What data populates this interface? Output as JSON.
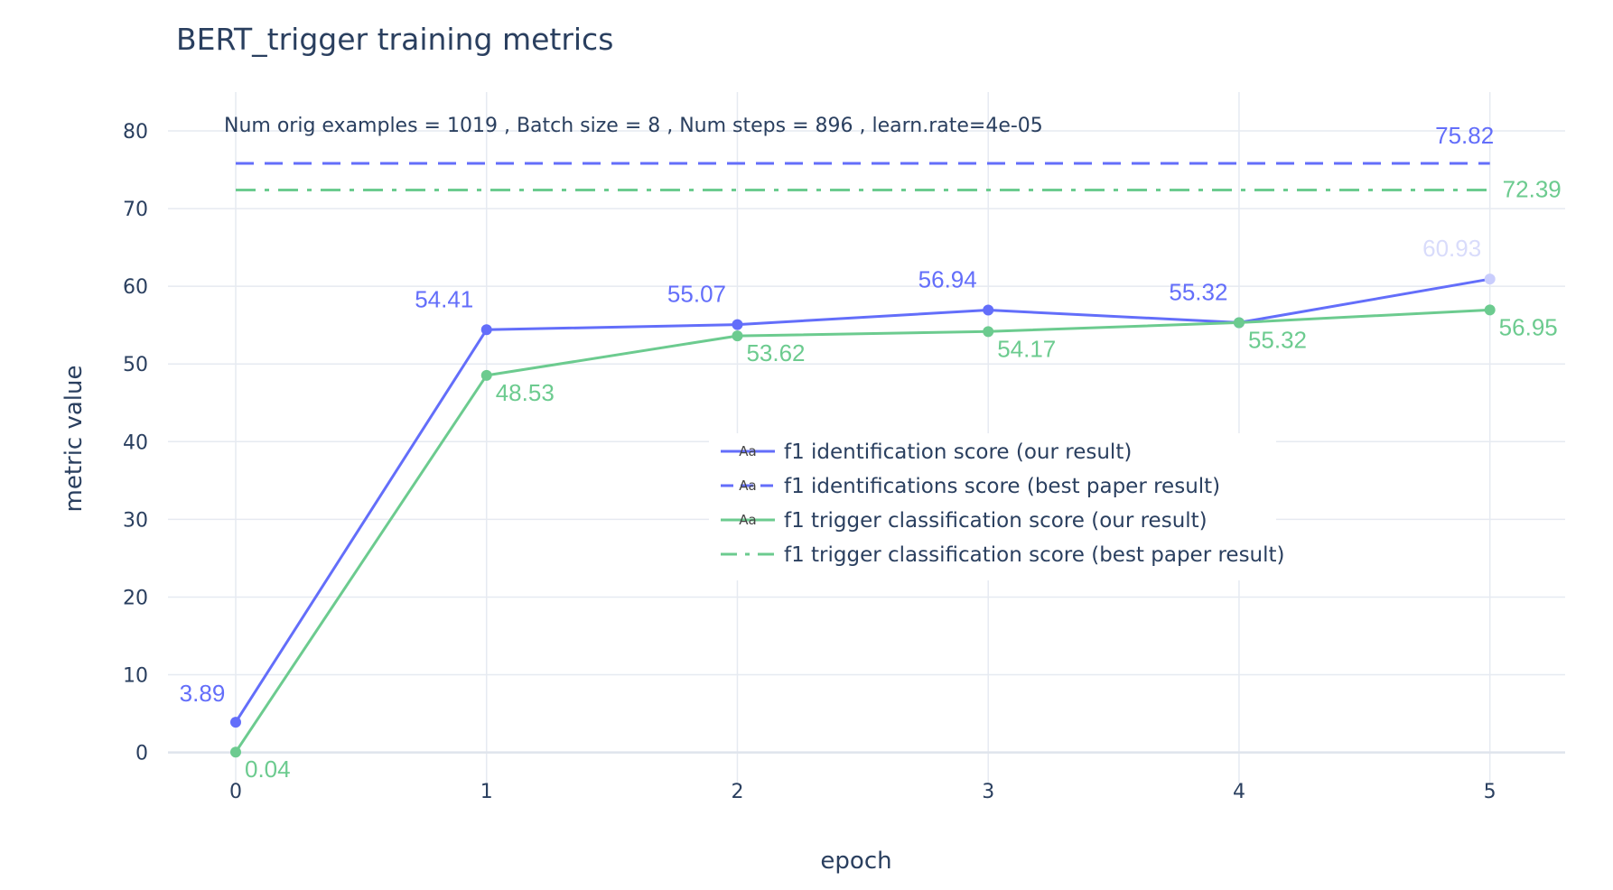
{
  "chart_data": {
    "type": "line",
    "title": "BERT_trigger training metrics",
    "xlabel": "epoch",
    "ylabel": "metric value",
    "annotation": "Num orig examples = 1019 ,   Batch size = 8   , Num steps = 896 , learn.rate=4e-05",
    "x": [
      0,
      1,
      2,
      3,
      4,
      5
    ],
    "x_ticks": [
      "0",
      "1",
      "2",
      "3",
      "4",
      "5"
    ],
    "y_ticks": [
      "0",
      "10",
      "20",
      "30",
      "40",
      "50",
      "60",
      "70",
      "80"
    ],
    "xlim": [
      -0.27,
      5.3
    ],
    "ylim": [
      -4,
      85
    ],
    "grid": true,
    "legend_position": "center-right",
    "series": [
      {
        "name": "f1 identification score (our result)",
        "color": "#636efa",
        "dash": "solid",
        "markers": true,
        "values": [
          3.89,
          54.41,
          55.07,
          56.94,
          55.32,
          60.93
        ],
        "labels": [
          "3.89",
          "54.41",
          "55.07",
          "56.94",
          "55.32",
          "60.93"
        ]
      },
      {
        "name": "f1 identifications score (best paper result)",
        "color": "#636efa",
        "dash": "dash",
        "markers": false,
        "values": [
          75.82,
          75.82,
          75.82,
          75.82,
          75.82,
          75.82
        ],
        "labels": [
          "",
          "",
          "",
          "",
          "",
          "75.82"
        ]
      },
      {
        "name": "f1 trigger classification score (our result)",
        "color": "#6ccb8f",
        "dash": "solid",
        "markers": true,
        "values": [
          0.04,
          48.53,
          53.62,
          54.17,
          55.32,
          56.95
        ],
        "labels": [
          "0.04",
          "48.53",
          "53.62",
          "54.17",
          "55.32",
          "56.95"
        ]
      },
      {
        "name": "f1 trigger classification score (best paper result)",
        "color": "#6ccb8f",
        "dash": "dashdot",
        "markers": false,
        "values": [
          72.39,
          72.39,
          72.39,
          72.39,
          72.39,
          72.39
        ],
        "labels": [
          "",
          "",
          "",
          "",
          "",
          "72.39"
        ]
      }
    ],
    "legend_symbol_text": "Aa"
  }
}
